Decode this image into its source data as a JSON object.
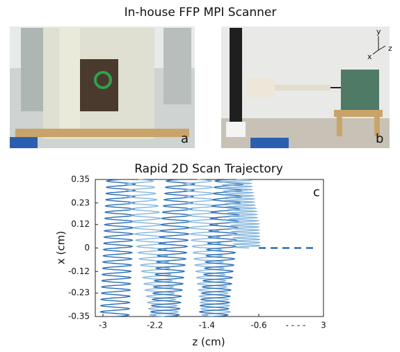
{
  "figure": {
    "title": "In-house FFP MPI Scanner",
    "panel_a": {
      "label": "a"
    },
    "panel_b": {
      "label": "b",
      "axis_y": "y",
      "axis_x": "x",
      "axis_z": "z"
    }
  },
  "chart_data": {
    "type": "trajectory",
    "title": "Rapid 2D Scan Trajectory",
    "x_label": "z (cm)",
    "y_label": "x (cm)",
    "panel_label": "c",
    "axis_break_label": "- - - -",
    "ylim": [
      -0.35,
      0.35
    ],
    "yticks": [
      0.35,
      0.23,
      0.12,
      0,
      -0.12,
      -0.23,
      -0.35
    ],
    "xticks": [
      -3,
      -2.2,
      -1.4,
      -0.6,
      3
    ],
    "amplitude": 0.22,
    "cycles": 22,
    "sweeps": [
      {
        "color": "#2a6db5",
        "z_start": -2.82,
        "z_end": -2.72,
        "x_start": -0.35,
        "x_end": 0.35
      },
      {
        "color": "#86b6de",
        "z_start": -2.45,
        "z_end": -2.05,
        "x_start": 0.35,
        "x_end": -0.35
      },
      {
        "color": "#2a6db5",
        "z_start": -2.05,
        "z_end": -1.8,
        "x_start": -0.35,
        "x_end": 0.35
      },
      {
        "color": "#86b6de",
        "z_start": -1.55,
        "z_end": -1.25,
        "x_start": 0.35,
        "x_end": -0.35
      },
      {
        "color": "#2a6db5",
        "z_start": -1.3,
        "z_end": -1.05,
        "x_start": -0.35,
        "x_end": 0.35
      },
      {
        "color": "#86b6de",
        "z_start": -0.95,
        "z_end": -0.75,
        "x_start": 0.35,
        "x_end": 0
      }
    ],
    "hold": {
      "color": "#2a6db5",
      "z_start": -0.6,
      "z_end": 2.6,
      "x": 0
    }
  }
}
